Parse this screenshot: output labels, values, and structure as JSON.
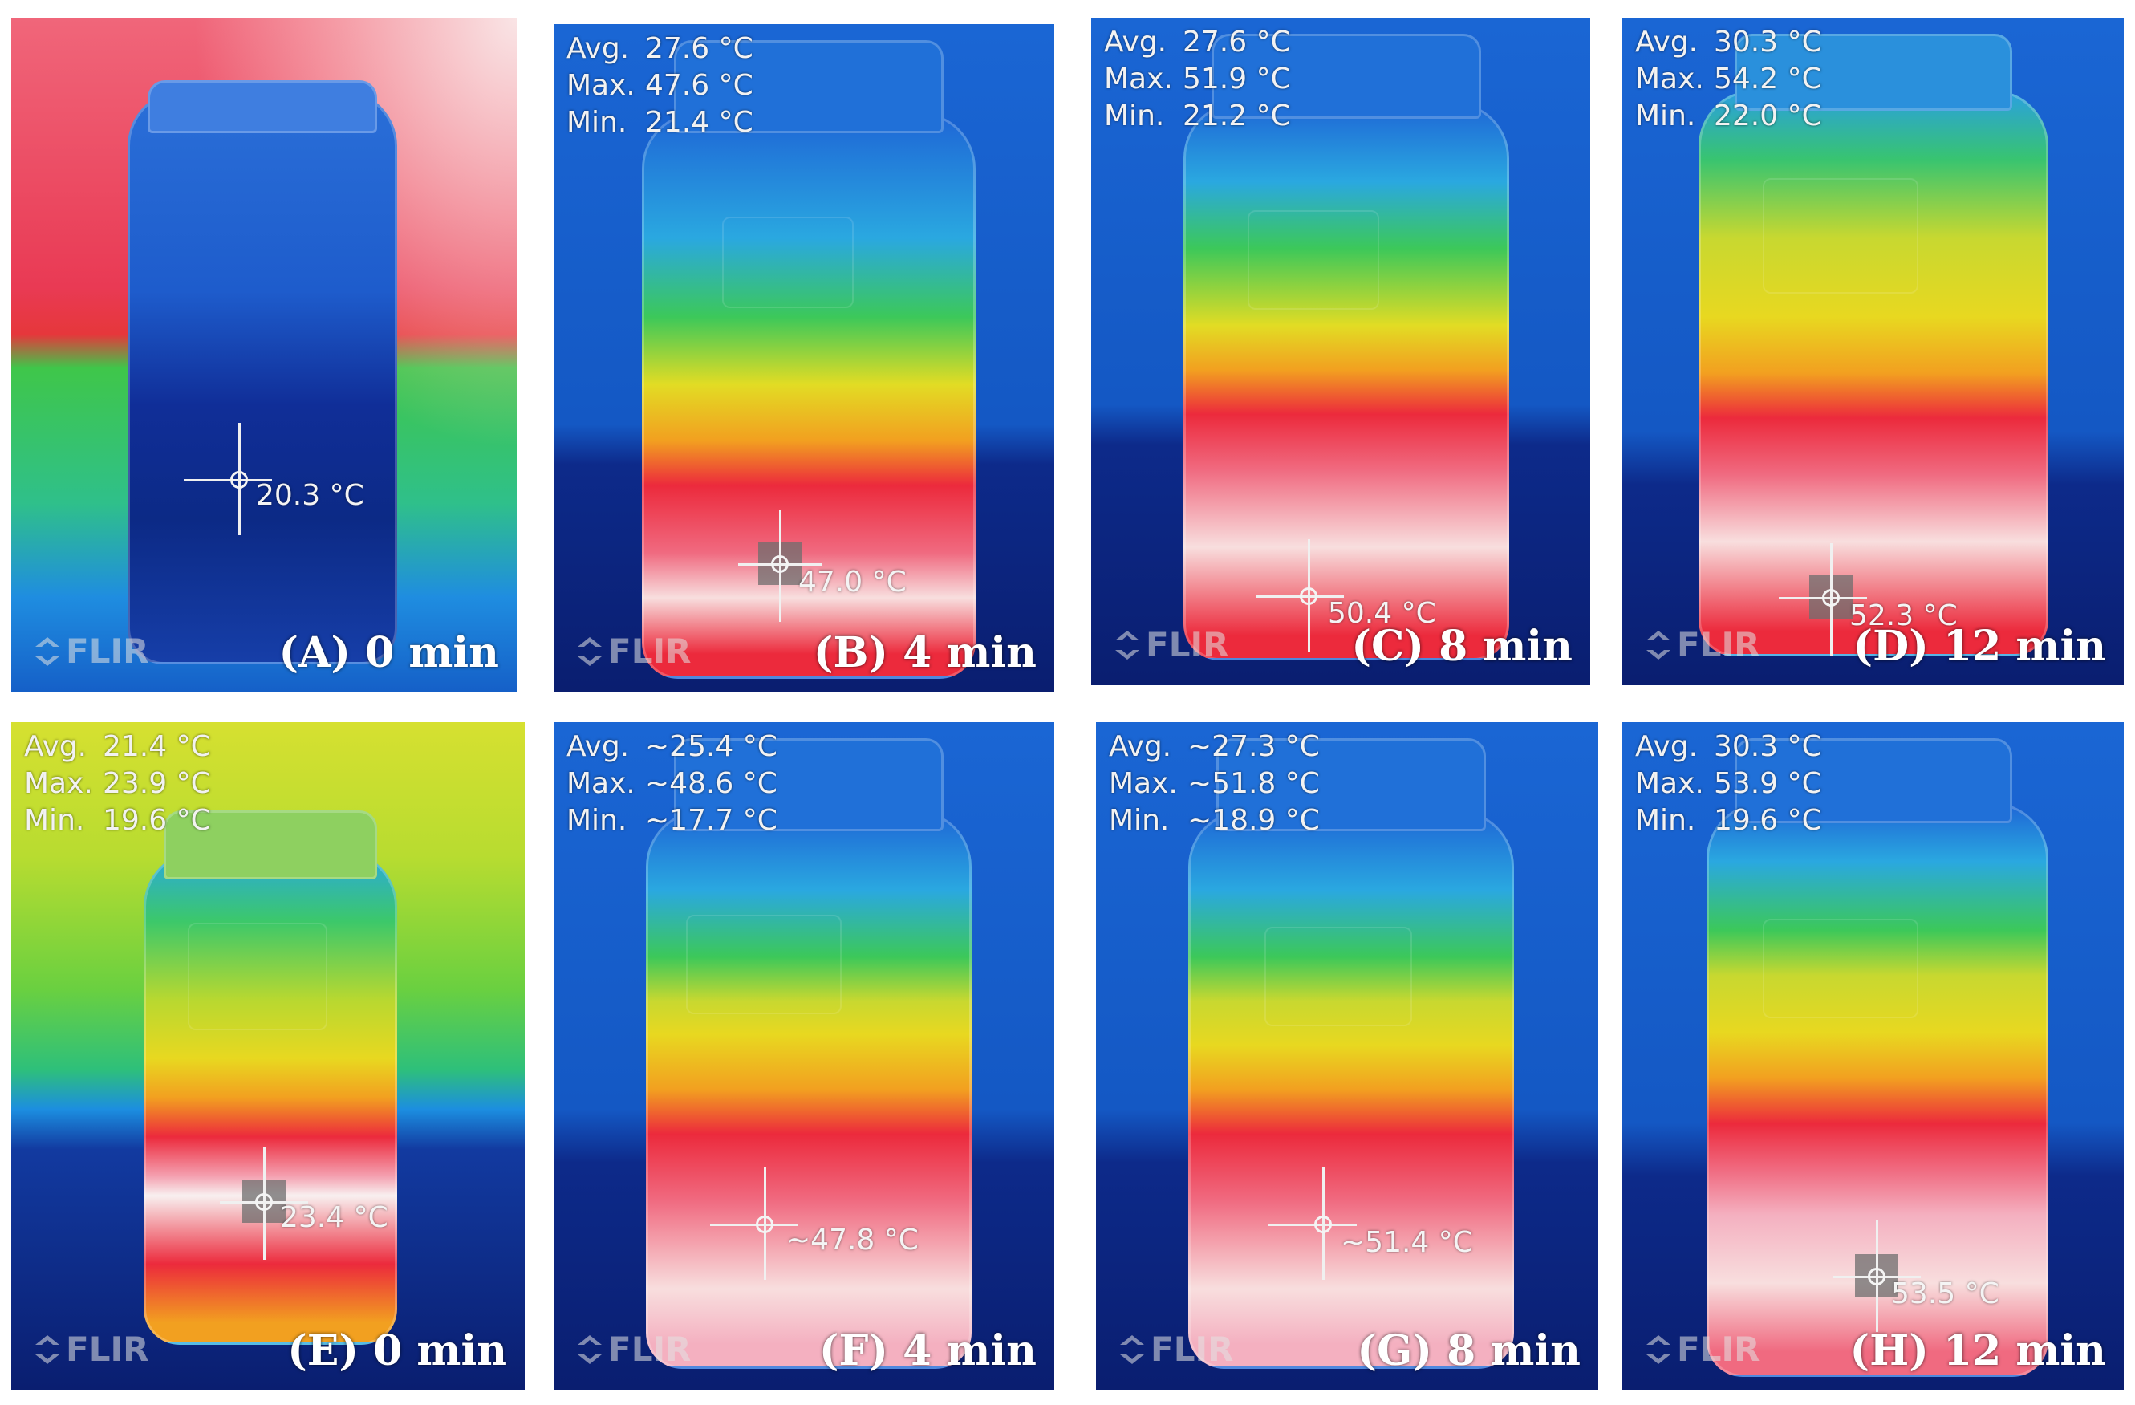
{
  "logo_text": "FLIR",
  "panels": [
    {
      "caption": "(A) 0 min",
      "avg": "",
      "max": "",
      "min": "",
      "spot": "20.3 °C"
    },
    {
      "caption": "(B) 4 min",
      "avg": "27.6 °C",
      "max": "47.6 °C",
      "min": "21.4 °C",
      "spot": "47.0 °C"
    },
    {
      "caption": "(C) 8 min",
      "avg": "27.6 °C",
      "max": "51.9 °C",
      "min": "21.2 °C",
      "spot": "50.4 °C"
    },
    {
      "caption": "(D) 12 min",
      "avg": "30.3 °C",
      "max": "54.2 °C",
      "min": "22.0 °C",
      "spot": "52.3 °C"
    },
    {
      "caption": "(E) 0 min",
      "avg": "21.4 °C",
      "max": "23.9 °C",
      "min": "19.6 °C",
      "spot": "23.4 °C"
    },
    {
      "caption": "(F) 4 min",
      "avg": "~25.4 °C",
      "max": "~48.6 °C",
      "min": "~17.7 °C",
      "spot": "~47.8 °C"
    },
    {
      "caption": "(G) 8 min",
      "avg": "~27.3 °C",
      "max": "~51.8 °C",
      "min": "~18.9 °C",
      "spot": "~51.4 °C"
    },
    {
      "caption": "(H) 12 min",
      "avg": "30.3 °C",
      "max": "53.9 °C",
      "min": "19.6 °C",
      "spot": "53.5 °C"
    }
  ],
  "stat_labels": {
    "avg": "Avg.",
    "max": "Max.",
    "min": "Min."
  },
  "colors": {
    "cold": "#0a1a6e",
    "blue": "#1158c8",
    "cyan": "#29b6e8",
    "green": "#4cc640",
    "yellow": "#e8e020",
    "red": "#ec2a3c",
    "hot": "#f8dede"
  }
}
